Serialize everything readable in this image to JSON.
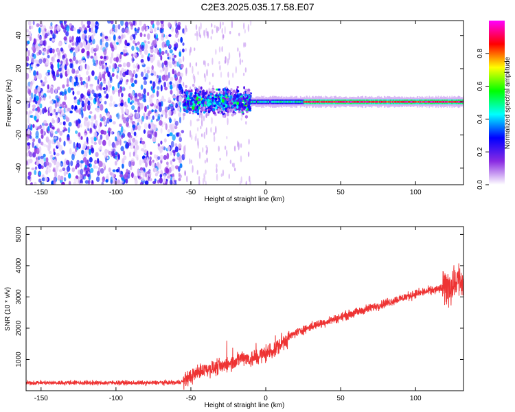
{
  "title": "C2E3.2025.035.17.58.E07",
  "chart_data": [
    {
      "type": "heatmap",
      "name": "spectrogram",
      "xlabel": "Height of straight line (km)",
      "ylabel": "Frequency (Hz)",
      "xlim": [
        -160,
        132
      ],
      "ylim": [
        -50,
        49
      ],
      "xticks": [
        -150,
        -100,
        -50,
        0,
        50,
        100
      ],
      "yticks": [
        -40,
        -20,
        0,
        20,
        40
      ],
      "colorbar": {
        "label": "Normalized spectral amplitude",
        "range": [
          0,
          1
        ],
        "ticks": [
          "0.0",
          "0.2",
          "0.4",
          "0.6",
          "0.8"
        ],
        "colors": [
          "#ffffff",
          "#8a2be2",
          "#0000ff",
          "#00ffff",
          "#00ff00",
          "#ffff00",
          "#ff0000",
          "#ff00ff"
        ]
      },
      "regions": [
        {
          "x": [
            -160,
            -55
          ],
          "description": "broadband noise",
          "amplitude": 0.15
        },
        {
          "x": [
            -55,
            -10
          ],
          "description": "scattered signal near 0 Hz",
          "amplitude": 0.35
        },
        {
          "x": [
            -10,
            132
          ],
          "description": "narrow line near 0 Hz",
          "amplitude": 0.9
        }
      ]
    },
    {
      "type": "line",
      "name": "snr",
      "xlabel": "Height of straight line (km)",
      "ylabel": "SNR (10 * v/v)",
      "xlim": [
        -160,
        132
      ],
      "ylim": [
        0,
        5250
      ],
      "xticks": [
        -150,
        -100,
        -50,
        0,
        50,
        100
      ],
      "yticks": [
        1000,
        2000,
        3000,
        4000,
        5000
      ],
      "color": "#ee3333",
      "series": [
        {
          "x": [
            -160,
            -150,
            -140,
            -130,
            -120,
            -110,
            -100,
            -90,
            -80,
            -70,
            -60,
            -55,
            -50,
            -45,
            -40,
            -35,
            -30,
            -25,
            -20,
            -15,
            -10,
            -5,
            0,
            5,
            10,
            15,
            20,
            25,
            30,
            40,
            50,
            60,
            70,
            80,
            90,
            100,
            110,
            115,
            120,
            125,
            128,
            130,
            132
          ],
          "values": [
            250,
            260,
            250,
            260,
            255,
            250,
            260,
            250,
            250,
            260,
            260,
            300,
            450,
            600,
            700,
            700,
            800,
            850,
            950,
            1100,
            1000,
            1100,
            1200,
            1300,
            1500,
            1700,
            1850,
            1950,
            2050,
            2200,
            2350,
            2500,
            2650,
            2800,
            2950,
            3100,
            3200,
            3250,
            3300,
            3400,
            3600,
            3500,
            3400
          ]
        }
      ]
    }
  ]
}
